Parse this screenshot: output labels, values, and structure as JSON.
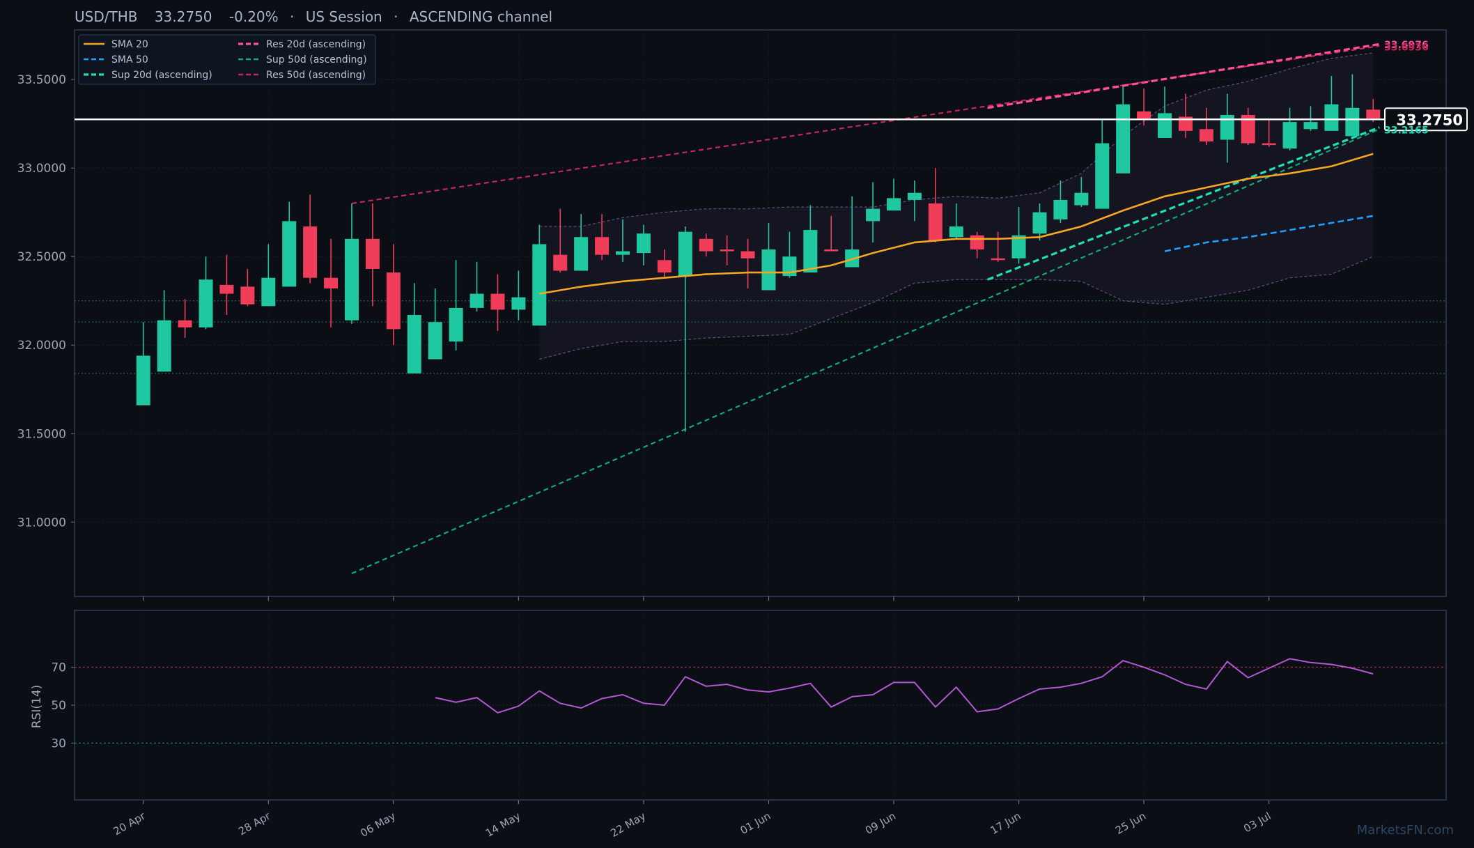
{
  "header": {
    "symbol": "USD/THB",
    "price": "33.2750",
    "change": "-0.20%",
    "session": "US Session",
    "channel": "ASCENDING channel"
  },
  "watermark": "MarketsFN.com",
  "colors": {
    "background": "#0b0e14",
    "panel_border": "#2a3f5a",
    "up": "#1fc8a0",
    "down": "#ef3d5a",
    "sma20": "#f5a623",
    "sma50": "#1ea0ff",
    "sup20": "#20dfb7",
    "sup50": "#14a977",
    "res20": "#ff4f9a",
    "res50": "#c2285a",
    "rsi": "#b456d6",
    "current": "#ffffff"
  },
  "chart_data": {
    "type": "candlestick",
    "price_panel": {
      "ylim": [
        30.58,
        33.78
      ],
      "yticks": [
        "31.0000",
        "31.5000",
        "32.0000",
        "32.5000",
        "33.0000",
        "33.5000"
      ],
      "xticks": [
        "20 Apr",
        "28 Apr",
        "06 May",
        "14 May",
        "22 May",
        "01 Jun",
        "09 Jun",
        "17 Jun",
        "25 Jun",
        "03 Jul"
      ],
      "xtick_index": [
        0,
        6,
        12,
        18,
        24,
        30,
        36,
        42,
        48,
        54
      ],
      "x_range": [
        -3.3,
        62.5
      ],
      "candles": [
        {
          "o": 31.66,
          "h": 32.13,
          "l": 31.66,
          "c": 31.94
        },
        {
          "o": 31.85,
          "h": 32.31,
          "l": 31.85,
          "c": 32.14
        },
        {
          "o": 32.14,
          "h": 32.26,
          "l": 32.04,
          "c": 32.1
        },
        {
          "o": 32.1,
          "h": 32.5,
          "l": 32.09,
          "c": 32.37
        },
        {
          "o": 32.34,
          "h": 32.51,
          "l": 32.17,
          "c": 32.29
        },
        {
          "o": 32.33,
          "h": 32.43,
          "l": 32.22,
          "c": 32.23
        },
        {
          "o": 32.22,
          "h": 32.57,
          "l": 32.22,
          "c": 32.38
        },
        {
          "o": 32.33,
          "h": 32.81,
          "l": 32.33,
          "c": 32.7
        },
        {
          "o": 32.67,
          "h": 32.85,
          "l": 32.35,
          "c": 32.38
        },
        {
          "o": 32.38,
          "h": 32.6,
          "l": 32.1,
          "c": 32.32
        },
        {
          "o": 32.14,
          "h": 32.8,
          "l": 32.12,
          "c": 32.6
        },
        {
          "o": 32.6,
          "h": 32.8,
          "l": 32.22,
          "c": 32.43
        },
        {
          "o": 32.41,
          "h": 32.57,
          "l": 32.0,
          "c": 32.09
        },
        {
          "o": 31.84,
          "h": 32.35,
          "l": 31.84,
          "c": 32.17
        },
        {
          "o": 31.92,
          "h": 32.32,
          "l": 31.92,
          "c": 32.13
        },
        {
          "o": 32.02,
          "h": 32.48,
          "l": 31.97,
          "c": 32.21
        },
        {
          "o": 32.21,
          "h": 32.47,
          "l": 32.19,
          "c": 32.29
        },
        {
          "o": 32.29,
          "h": 32.4,
          "l": 32.08,
          "c": 32.2
        },
        {
          "o": 32.2,
          "h": 32.42,
          "l": 32.14,
          "c": 32.27
        },
        {
          "o": 32.11,
          "h": 32.68,
          "l": 32.11,
          "c": 32.57
        },
        {
          "o": 32.51,
          "h": 32.77,
          "l": 32.41,
          "c": 32.42
        },
        {
          "o": 32.42,
          "h": 32.74,
          "l": 32.42,
          "c": 32.61
        },
        {
          "o": 32.61,
          "h": 32.74,
          "l": 32.48,
          "c": 32.51
        },
        {
          "o": 32.51,
          "h": 32.71,
          "l": 32.47,
          "c": 32.53
        },
        {
          "o": 32.52,
          "h": 32.68,
          "l": 32.45,
          "c": 32.63
        },
        {
          "o": 32.48,
          "h": 32.54,
          "l": 32.38,
          "c": 32.41
        },
        {
          "o": 32.39,
          "h": 32.67,
          "l": 31.51,
          "c": 32.64
        },
        {
          "o": 32.6,
          "h": 32.63,
          "l": 32.5,
          "c": 32.53
        },
        {
          "o": 32.54,
          "h": 32.62,
          "l": 32.45,
          "c": 32.53
        },
        {
          "o": 32.53,
          "h": 32.6,
          "l": 32.32,
          "c": 32.49
        },
        {
          "o": 32.31,
          "h": 32.69,
          "l": 32.31,
          "c": 32.54
        },
        {
          "o": 32.39,
          "h": 32.64,
          "l": 32.38,
          "c": 32.5
        },
        {
          "o": 32.41,
          "h": 32.79,
          "l": 32.41,
          "c": 32.65
        },
        {
          "o": 32.54,
          "h": 32.73,
          "l": 32.54,
          "c": 32.53
        },
        {
          "o": 32.44,
          "h": 32.84,
          "l": 32.44,
          "c": 32.54
        },
        {
          "o": 32.7,
          "h": 32.92,
          "l": 32.58,
          "c": 32.77
        },
        {
          "o": 32.76,
          "h": 32.94,
          "l": 32.76,
          "c": 32.83
        },
        {
          "o": 32.82,
          "h": 32.93,
          "l": 32.7,
          "c": 32.86
        },
        {
          "o": 32.8,
          "h": 33.0,
          "l": 32.58,
          "c": 32.59
        },
        {
          "o": 32.61,
          "h": 32.8,
          "l": 32.6,
          "c": 32.67
        },
        {
          "o": 32.62,
          "h": 32.64,
          "l": 32.49,
          "c": 32.54
        },
        {
          "o": 32.49,
          "h": 32.64,
          "l": 32.47,
          "c": 32.48
        },
        {
          "o": 32.49,
          "h": 32.78,
          "l": 32.46,
          "c": 32.62
        },
        {
          "o": 32.63,
          "h": 32.8,
          "l": 32.59,
          "c": 32.75
        },
        {
          "o": 32.71,
          "h": 32.93,
          "l": 32.69,
          "c": 32.82
        },
        {
          "o": 32.79,
          "h": 32.95,
          "l": 32.78,
          "c": 32.86
        },
        {
          "o": 32.77,
          "h": 33.27,
          "l": 32.77,
          "c": 33.14
        },
        {
          "o": 32.97,
          "h": 33.46,
          "l": 32.97,
          "c": 33.36
        },
        {
          "o": 33.32,
          "h": 33.45,
          "l": 33.24,
          "c": 33.28
        },
        {
          "o": 33.17,
          "h": 33.46,
          "l": 33.17,
          "c": 33.31
        },
        {
          "o": 33.29,
          "h": 33.42,
          "l": 33.17,
          "c": 33.21
        },
        {
          "o": 33.22,
          "h": 33.34,
          "l": 33.13,
          "c": 33.15
        },
        {
          "o": 33.16,
          "h": 33.42,
          "l": 33.03,
          "c": 33.3
        },
        {
          "o": 33.3,
          "h": 33.34,
          "l": 33.13,
          "c": 33.14
        },
        {
          "o": 33.14,
          "h": 33.27,
          "l": 33.12,
          "c": 33.13
        },
        {
          "o": 33.11,
          "h": 33.34,
          "l": 33.1,
          "c": 33.26
        },
        {
          "o": 33.22,
          "h": 33.35,
          "l": 33.21,
          "c": 33.26
        },
        {
          "o": 33.21,
          "h": 33.52,
          "l": 33.21,
          "c": 33.36
        },
        {
          "o": 33.18,
          "h": 33.53,
          "l": 33.18,
          "c": 33.34
        },
        {
          "o": 33.33,
          "h": 33.39,
          "l": 33.26,
          "c": 33.28
        }
      ],
      "sma20": {
        "x": [
          19,
          21,
          23,
          25,
          27,
          29,
          31,
          33,
          35,
          37,
          39,
          41,
          43,
          45,
          47,
          49,
          51,
          53,
          55,
          57,
          59
        ],
        "y": [
          32.29,
          32.33,
          32.36,
          32.38,
          32.4,
          32.41,
          32.41,
          32.45,
          32.52,
          32.58,
          32.6,
          32.6,
          32.61,
          32.67,
          32.76,
          32.84,
          32.89,
          32.94,
          32.97,
          33.01,
          33.08
        ]
      },
      "sma50": {
        "x": [
          49,
          51,
          53,
          55,
          57,
          59
        ],
        "y": [
          32.53,
          32.58,
          32.61,
          32.65,
          32.69,
          32.73
        ]
      },
      "bollinger_upper": {
        "x": [
          19,
          21,
          23,
          25,
          27,
          29,
          31,
          33,
          35,
          37,
          39,
          41,
          43,
          45,
          47,
          49,
          51,
          53,
          55,
          57,
          59
        ],
        "y": [
          32.67,
          32.67,
          32.72,
          32.75,
          32.77,
          32.77,
          32.78,
          32.78,
          32.78,
          32.82,
          32.84,
          32.83,
          32.86,
          32.97,
          33.18,
          33.35,
          33.44,
          33.49,
          33.56,
          33.62,
          33.65
        ]
      },
      "bollinger_lower": {
        "x": [
          19,
          21,
          23,
          25,
          27,
          29,
          31,
          33,
          35,
          37,
          39,
          41,
          43,
          45,
          47,
          49,
          51,
          53,
          55,
          57,
          59
        ],
        "y": [
          31.92,
          31.98,
          32.02,
          32.02,
          32.04,
          32.05,
          32.06,
          32.15,
          32.24,
          32.35,
          32.37,
          32.37,
          32.37,
          32.36,
          32.25,
          32.23,
          32.27,
          32.31,
          32.38,
          32.4,
          32.5
        ]
      },
      "channel_lines": [
        {
          "key": "res50",
          "x": [
            10,
            59.3
          ],
          "y": [
            32.8,
            33.69
          ],
          "width": 2.2
        },
        {
          "key": "sup50",
          "x": [
            10,
            59.3
          ],
          "y": [
            30.71,
            33.22
          ],
          "width": 2.2
        },
        {
          "key": "res20",
          "x": [
            40.5,
            59.3
          ],
          "y": [
            33.34,
            33.7
          ],
          "width": 3.2
        },
        {
          "key": "sup20",
          "x": [
            40.5,
            59.3
          ],
          "y": [
            32.37,
            33.23
          ],
          "width": 3.2
        }
      ],
      "horizontal_levels": [
        32.25,
        32.13,
        31.84
      ],
      "current_price": 33.275,
      "right_labels": [
        {
          "text": "33.6976",
          "y": 33.697,
          "key": "res20"
        },
        {
          "text": "33.6936",
          "y": 33.684,
          "key": "res50"
        },
        {
          "text": "33.2165",
          "y": 33.215,
          "key": "sup20"
        }
      ],
      "current_label": "33.2750"
    },
    "rsi_panel": {
      "ylabel": "RSI(14)",
      "ylim": [
        0,
        100
      ],
      "yticks": [
        "30",
        "50",
        "70"
      ],
      "levels": [
        70,
        30
      ],
      "x": [
        14,
        15,
        16,
        17,
        18,
        19,
        20,
        21,
        22,
        23,
        24,
        25,
        26,
        27,
        28,
        29,
        30,
        31,
        32,
        33,
        34,
        35,
        36,
        37,
        38,
        39,
        40,
        41,
        42,
        43,
        44,
        45,
        46,
        47,
        48,
        49,
        50,
        51,
        52,
        53,
        54,
        55,
        56,
        57,
        58,
        59
      ],
      "values": [
        54,
        51.5,
        54,
        46,
        49.5,
        57.5,
        51,
        48.5,
        53.5,
        55.5,
        51,
        50,
        65,
        60,
        61,
        58,
        57,
        59,
        61.5,
        49,
        54.5,
        55.5,
        62,
        62,
        49,
        59.5,
        46.5,
        48,
        53.5,
        58.5,
        59.5,
        61.5,
        65,
        73.5,
        70,
        66,
        61,
        58.5,
        73,
        64.5,
        69.5,
        74.5,
        72.5,
        71.5,
        69.5,
        66.5
      ]
    },
    "legend": {
      "placement": "top-left",
      "entries": [
        {
          "label": "SMA 20",
          "key": "sma20",
          "dash": "solid"
        },
        {
          "label": "SMA 50",
          "key": "sma50",
          "dash": "dash"
        },
        {
          "label": "Sup 20d (ascending)",
          "key": "sup20",
          "dash": "dash"
        },
        {
          "label": "Res 20d (ascending)",
          "key": "res20",
          "dash": "dash"
        },
        {
          "label": "Sup 50d (ascending)",
          "key": "sup50",
          "dash": "dash"
        },
        {
          "label": "Res 50d (ascending)",
          "key": "res50",
          "dash": "dash"
        }
      ]
    }
  }
}
